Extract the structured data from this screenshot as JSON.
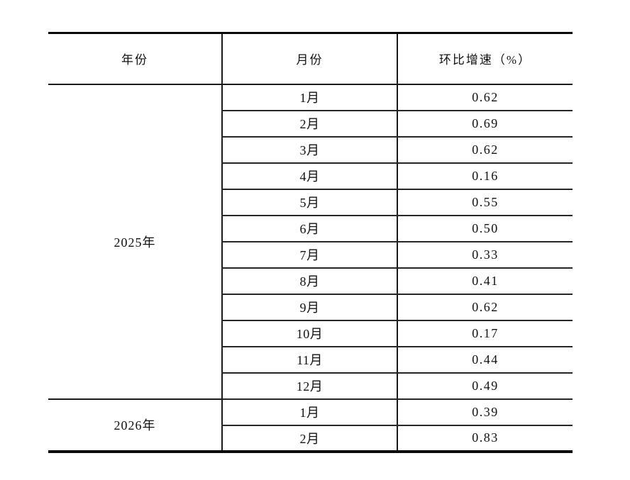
{
  "table": {
    "headers": [
      "年份",
      "月份",
      "环比增速（%）"
    ],
    "groups": [
      {
        "year": "2025年",
        "rows": [
          {
            "month": "1月",
            "value": "0.62"
          },
          {
            "month": "2月",
            "value": "0.69"
          },
          {
            "month": "3月",
            "value": "0.62"
          },
          {
            "month": "4月",
            "value": "0.16"
          },
          {
            "month": "5月",
            "value": "0.55"
          },
          {
            "month": "6月",
            "value": "0.50"
          },
          {
            "month": "7月",
            "value": "0.33"
          },
          {
            "month": "8月",
            "value": "0.41"
          },
          {
            "month": "9月",
            "value": "0.62"
          },
          {
            "month": "10月",
            "value": "0.17"
          },
          {
            "month": "11月",
            "value": "0.44"
          },
          {
            "month": "12月",
            "value": "0.49"
          }
        ]
      },
      {
        "year": "2026年",
        "rows": [
          {
            "month": "1月",
            "value": "0.39"
          },
          {
            "month": "2月",
            "value": "0.83"
          }
        ]
      }
    ]
  },
  "chart_data": {
    "type": "table",
    "title": "",
    "columns": [
      "年份",
      "月份",
      "环比增速（%）"
    ],
    "rows": [
      [
        "2025年",
        "1月",
        0.62
      ],
      [
        "2025年",
        "2月",
        0.69
      ],
      [
        "2025年",
        "3月",
        0.62
      ],
      [
        "2025年",
        "4月",
        0.16
      ],
      [
        "2025年",
        "5月",
        0.55
      ],
      [
        "2025年",
        "6月",
        0.5
      ],
      [
        "2025年",
        "7月",
        0.33
      ],
      [
        "2025年",
        "8月",
        0.41
      ],
      [
        "2025年",
        "9月",
        0.62
      ],
      [
        "2025年",
        "10月",
        0.17
      ],
      [
        "2025年",
        "11月",
        0.44
      ],
      [
        "2025年",
        "12月",
        0.49
      ],
      [
        "2026年",
        "1月",
        0.39
      ],
      [
        "2026年",
        "2月",
        0.83
      ]
    ]
  },
  "colors": {
    "border": "#1a1a1a",
    "text": "#111111",
    "background": "#ffffff"
  }
}
